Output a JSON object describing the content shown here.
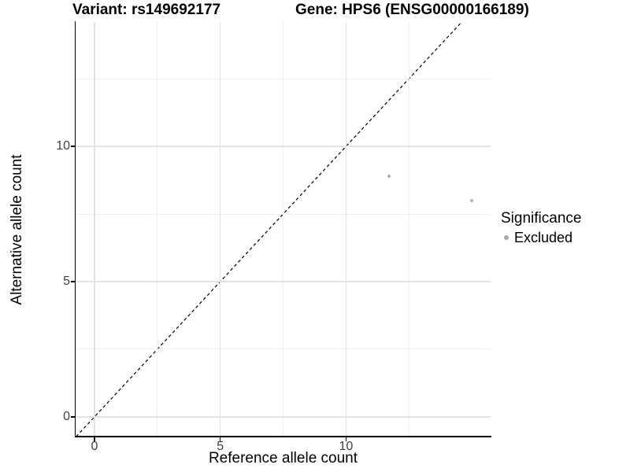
{
  "chart_data": {
    "type": "scatter",
    "title_left": "Variant: rs149692177",
    "title_right": "Gene: HPS6 (ENSG00000166189)",
    "xlabel": "Reference allele count",
    "ylabel": "Alternative allele count",
    "xlim": [
      -0.75,
      15.75
    ],
    "ylim": [
      -0.73,
      14.6
    ],
    "x_ticks": [
      0,
      5,
      10
    ],
    "y_ticks": [
      0,
      5,
      10
    ],
    "x_minor_gridlines": [
      2.5,
      7.5,
      12.5
    ],
    "y_minor_gridlines": [
      2.5,
      7.5,
      12.5
    ],
    "grid": true,
    "legend_position": "right",
    "legend": {
      "title": "Significance",
      "items": [
        {
          "label": "Excluded",
          "color": "#a8a8a8"
        }
      ]
    },
    "series": [
      {
        "name": "Excluded",
        "color": "#b1b1b1",
        "points": [
          {
            "x": 11.7,
            "y": 8.9
          },
          {
            "x": 15,
            "y": 8
          }
        ]
      }
    ],
    "reference_line": {
      "slope": 1,
      "intercept": 0,
      "style": "dashed",
      "color": "#000000"
    }
  },
  "colors": {
    "background": "#ffffff",
    "grid_major": "#e3e3e3",
    "grid_minor": "#f0f0f0",
    "axis_line": "#000000",
    "tick_label": "#404040",
    "text": "#000000"
  }
}
